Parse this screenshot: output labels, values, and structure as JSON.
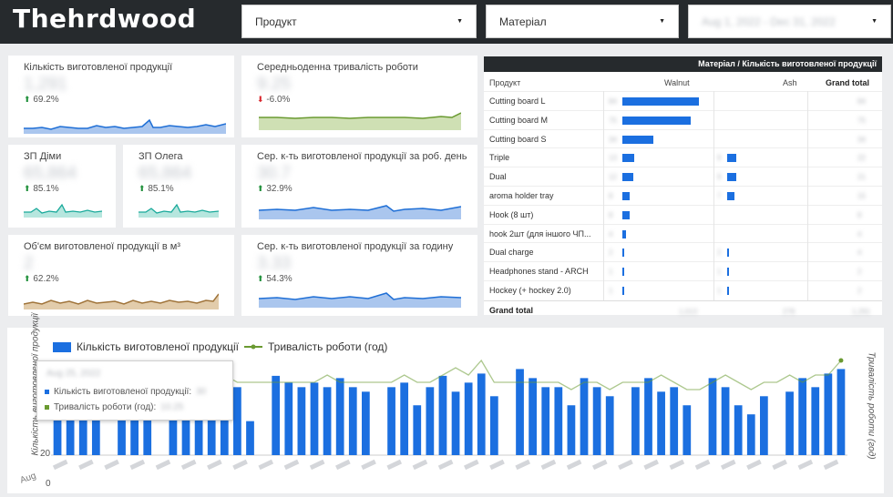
{
  "header": {
    "brand": "Thehrdwood",
    "filter_product": "Продукт",
    "filter_material": "Матеріал",
    "filter_date": "Aug 1, 2022 - Dec 31, 2022"
  },
  "kpis": {
    "produced": {
      "title": "Кількість виготовленої продукції",
      "value": "1,291",
      "delta": "69.2%",
      "trend": "up",
      "color": "#1f6fd6"
    },
    "avg_work": {
      "title": "Середньоденна тривалість роботи",
      "value": "9.25",
      "delta": "-6.0%",
      "trend": "down",
      "color": "#6a9a31"
    },
    "zp_dima": {
      "title": "ЗП Діми",
      "value": "65,864",
      "delta": "85.1%",
      "trend": "up",
      "color": "#1aaa9b"
    },
    "zp_oleg": {
      "title": "ЗП Олега",
      "value": "65,864",
      "delta": "85.1%",
      "trend": "up",
      "color": "#1aaa9b"
    },
    "per_day": {
      "title": "Сер. к-ть виготовленої продукції за роб. день",
      "value": "30.7",
      "delta": "32.9%",
      "trend": "up",
      "color": "#1f6fd6"
    },
    "volume": {
      "title": "Об'єм виготовленої продукції в м³",
      "value": "2",
      "delta": "62.2%",
      "trend": "up",
      "color": "#a0743a"
    },
    "per_hour": {
      "title": "Сер. к-ть виготовленої продукції за годину",
      "value": "3.33",
      "delta": "54.3%",
      "trend": "up",
      "color": "#1f6fd6"
    }
  },
  "pivot": {
    "header": "Матеріал / Кількість виготовленої продукції",
    "col_product": "Продукт",
    "col_walnut": "Walnut",
    "col_ash": "Ash",
    "col_total": "Grand total",
    "rows": [
      {
        "name": "Cutting board L",
        "walnut": 84,
        "ash": null,
        "total": 84,
        "walnut_label": "84",
        "ash_label": "",
        "total_label": "84"
      },
      {
        "name": "Cutting board M",
        "walnut": 75,
        "ash": null,
        "total": 75,
        "walnut_label": "75",
        "ash_label": "",
        "total_label": "75"
      },
      {
        "name": "Cutting board S",
        "walnut": 34,
        "ash": null,
        "total": 34,
        "walnut_label": "34",
        "ash_label": "",
        "total_label": "34"
      },
      {
        "name": "Triple",
        "walnut": 13,
        "ash": 9,
        "total": 22,
        "walnut_label": "13",
        "ash_label": "9",
        "total_label": "22"
      },
      {
        "name": "Dual",
        "walnut": 12,
        "ash": 9,
        "total": 21,
        "walnut_label": "12",
        "ash_label": "9",
        "total_label": "21"
      },
      {
        "name": "aroma holder tray",
        "walnut": 8,
        "ash": 7,
        "total": 15,
        "walnut_label": "8",
        "ash_label": "7",
        "total_label": "15"
      },
      {
        "name": "Hook (8 шт)",
        "walnut": 8,
        "ash": null,
        "total": 8,
        "walnut_label": "8",
        "ash_label": "",
        "total_label": "8"
      },
      {
        "name": "hook 2шт (для іншого ЧП...",
        "walnut": 4,
        "ash": null,
        "total": 4,
        "walnut_label": "4",
        "ash_label": "",
        "total_label": "4"
      },
      {
        "name": "Dual charge",
        "walnut": 2,
        "ash": 2,
        "total": 4,
        "walnut_label": "2",
        "ash_label": "2",
        "total_label": "4"
      },
      {
        "name": "Headphones stand - ARCH",
        "walnut": 1,
        "ash": 1,
        "total": 2,
        "walnut_label": "1",
        "ash_label": "1",
        "total_label": "2"
      },
      {
        "name": "Hockey (+ hockey 2.0)",
        "walnut": 1,
        "ash": 1,
        "total": 2,
        "walnut_label": "1",
        "ash_label": "1",
        "total_label": "2"
      }
    ],
    "grand_label": "Grand total",
    "grand_walnut": "1,013",
    "grand_ash": "278",
    "grand_total": "1,291",
    "bar_color": "#1b6fe0"
  },
  "combo": {
    "legend_bar": "Кількість виготовленої продукції",
    "legend_line": "Тривалість роботи (год)",
    "ylabel_left": "Кількість виготовленої продукції",
    "ylabel_right": "Тривалість роботи (год)",
    "tick_left_0": "0",
    "tick_left_20": "20",
    "x_cut_label": "Aug",
    "tooltip": {
      "date": "Aug 25, 2022",
      "line1_label": "Кількість виготовленої продукції:",
      "line1_value": "30",
      "line2_label": "Тривалість роботи (год):",
      "line2_value": "10.25"
    },
    "bar_color": "#1b6fe0",
    "line_color": "#6a9a31"
  },
  "chart_data": {
    "type": "bar",
    "title": "",
    "xlabel": "",
    "ylabel": "Кількість виготовленої продукції",
    "ylim": [
      0,
      45
    ],
    "y2label": "Тривалість роботи (год)",
    "y2lim": [
      0,
      14
    ],
    "series": [
      {
        "name": "Кількість виготовленої продукції",
        "type": "bar",
        "values": [
          30,
          30,
          30,
          30,
          0,
          30,
          30,
          30,
          0,
          30,
          30,
          18,
          35,
          22,
          30,
          15,
          0,
          35,
          32,
          30,
          32,
          30,
          34,
          30,
          28,
          0,
          30,
          32,
          22,
          30,
          35,
          28,
          32,
          36,
          26,
          0,
          38,
          34,
          30,
          30,
          22,
          34,
          30,
          26,
          0,
          30,
          34,
          28,
          30,
          22,
          0,
          34,
          30,
          22,
          18,
          26,
          0,
          28,
          34,
          30,
          36,
          38
        ]
      },
      {
        "name": "Тривалість роботи (год)",
        "type": "line",
        "values": [
          9,
          9,
          9,
          9,
          9,
          9,
          9,
          9,
          9,
          9,
          9,
          10,
          10,
          11,
          10,
          10,
          10,
          10,
          10,
          10,
          10,
          11,
          10,
          10,
          10,
          10,
          10,
          11,
          10,
          10,
          11,
          12,
          11,
          13,
          10,
          10,
          10,
          10,
          10,
          10,
          9,
          10,
          10,
          9,
          10,
          10,
          10,
          11,
          10,
          9,
          9,
          10,
          11,
          10,
          9,
          10,
          10,
          11,
          10,
          11,
          11,
          13
        ]
      }
    ]
  }
}
